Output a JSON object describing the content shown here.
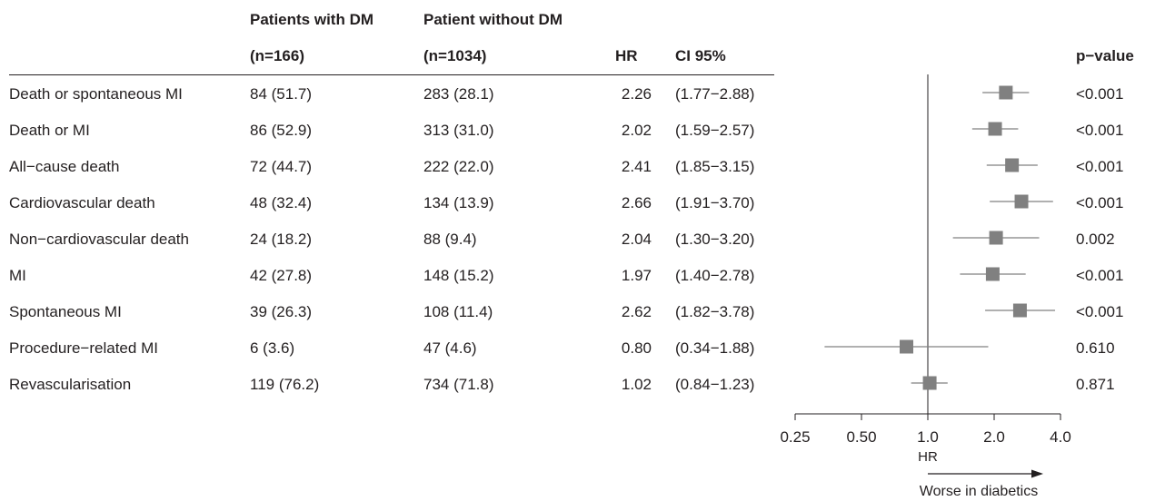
{
  "headers": {
    "dm_line1": "Patients with DM",
    "dm_line2": "(n=166)",
    "nodm_line1": "Patient without DM",
    "nodm_line2": "(n=1034)",
    "hr": "HR",
    "ci": "CI 95%",
    "pvalue": "p−value"
  },
  "rows": [
    {
      "label": "Death or spontaneous MI",
      "dm": "84 (51.7)",
      "nodm": "283 (28.1)",
      "hr": "2.26",
      "ci": "(1.77−2.88)",
      "p": "<0.001"
    },
    {
      "label": "Death or MI",
      "dm": "86 (52.9)",
      "nodm": "313 (31.0)",
      "hr": "2.02",
      "ci": "(1.59−2.57)",
      "p": "<0.001"
    },
    {
      "label": "All−cause death",
      "dm": "72 (44.7)",
      "nodm": "222 (22.0)",
      "hr": "2.41",
      "ci": "(1.85−3.15)",
      "p": "<0.001"
    },
    {
      "label": "Cardiovascular death",
      "dm": "48 (32.4)",
      "nodm": "134 (13.9)",
      "hr": "2.66",
      "ci": "(1.91−3.70)",
      "p": "<0.001"
    },
    {
      "label": "Non−cardiovascular death",
      "dm": "24 (18.2)",
      "nodm": "88 (9.4)",
      "hr": "2.04",
      "ci": "(1.30−3.20)",
      "p": "0.002"
    },
    {
      "label": "MI",
      "dm": "42 (27.8)",
      "nodm": "148 (15.2)",
      "hr": "1.97",
      "ci": "(1.40−2.78)",
      "p": "<0.001"
    },
    {
      "label": "Spontaneous MI",
      "dm": "39 (26.3)",
      "nodm": "108 (11.4)",
      "hr": "2.62",
      "ci": "(1.82−3.78)",
      "p": "<0.001"
    },
    {
      "label": "Procedure−related MI",
      "dm": "6 (3.6)",
      "nodm": "47 (4.6)",
      "hr": "0.80",
      "ci": "(0.34−1.88)",
      "p": "0.610"
    },
    {
      "label": "Revascularisation",
      "dm": "119 (76.2)",
      "nodm": "734 (71.8)",
      "hr": "1.02",
      "ci": "(0.84−1.23)",
      "p": "0.871"
    }
  ],
  "chart_data": {
    "type": "forest",
    "scale": "log2",
    "xlim": [
      0.25,
      4.0
    ],
    "reference_line": 1.0,
    "xlabel": "HR",
    "xticks": [
      0.25,
      0.5,
      1.0,
      2.0,
      4.0
    ],
    "xtick_labels": [
      "0.25",
      "0.50",
      "1.0",
      "2.0",
      "4.0"
    ],
    "direction_label": "Worse in diabetics",
    "series": [
      {
        "values": [
          {
            "hr": 2.26,
            "lo": 1.77,
            "hi": 2.88
          },
          {
            "hr": 2.02,
            "lo": 1.59,
            "hi": 2.57
          },
          {
            "hr": 2.41,
            "lo": 1.85,
            "hi": 3.15
          },
          {
            "hr": 2.66,
            "lo": 1.91,
            "hi": 3.7
          },
          {
            "hr": 2.04,
            "lo": 1.3,
            "hi": 3.2
          },
          {
            "hr": 1.97,
            "lo": 1.4,
            "hi": 2.78
          },
          {
            "hr": 2.62,
            "lo": 1.82,
            "hi": 3.78
          },
          {
            "hr": 0.8,
            "lo": 0.34,
            "hi": 1.88
          },
          {
            "hr": 1.02,
            "lo": 0.84,
            "hi": 1.23
          }
        ]
      }
    ],
    "colors": {
      "marker": "#808080",
      "ci_line": "#808080",
      "axis": "#231f20"
    }
  }
}
